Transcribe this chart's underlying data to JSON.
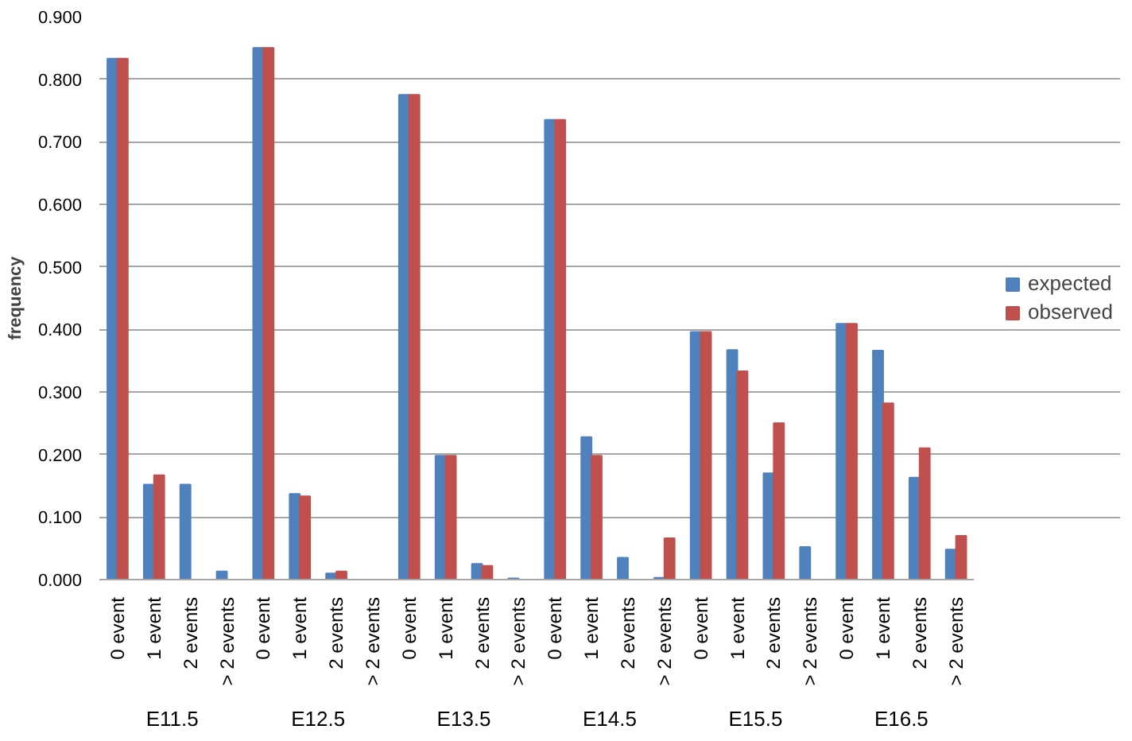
{
  "chart_data": {
    "type": "bar",
    "ylabel": "frequency",
    "categories": [
      "0 event",
      "1 event",
      "2 events",
      "> 2 events",
      "0 event",
      "1 event",
      "2 events",
      "> 2 events",
      "0 event",
      "1 event",
      "2 events",
      "> 2 events",
      "0 event",
      "1 event",
      "2 events",
      "> 2 events",
      "0 event",
      "1 event",
      "2 events",
      "> 2 events",
      "0 event",
      "1 event",
      "2 events",
      "> 2 events"
    ],
    "annotations": [
      "E11.5",
      "E12.5",
      "E13.5",
      "E14.5",
      "E15.5",
      "E16.5"
    ],
    "series": [
      {
        "name": "expected",
        "color": "#4f81bd",
        "values": [
          0.833,
          0.152,
          0.152,
          0.013,
          0.85,
          0.137,
          0.01,
          0,
          0.775,
          0.198,
          0.025,
          0.002,
          0.735,
          0.228,
          0.035,
          0.003,
          0.396,
          0.367,
          0.17,
          0.052,
          0.409,
          0.366,
          0.163,
          0.048
        ]
      },
      {
        "name": "observed",
        "color": "#c0504d",
        "values": [
          0.833,
          0.167,
          0,
          0,
          0.85,
          0.133,
          0.013,
          0,
          0.775,
          0.198,
          0.022,
          0,
          0.735,
          0.198,
          0,
          0.066,
          0.396,
          0.333,
          0.25,
          0,
          0.409,
          0.282,
          0.21,
          0.07
        ]
      }
    ],
    "ylim": [
      0,
      0.9
    ],
    "yticks": [
      {
        "value": 0,
        "label": "0.000"
      },
      {
        "value": 0.1,
        "label": "0.100"
      },
      {
        "value": 0.2,
        "label": "0.200"
      },
      {
        "value": 0.3,
        "label": "0.300"
      },
      {
        "value": 0.4,
        "label": "0.400"
      },
      {
        "value": 0.5,
        "label": "0.500"
      },
      {
        "value": 0.6,
        "label": "0.600"
      },
      {
        "value": 0.7,
        "label": "0.700"
      },
      {
        "value": 0.8,
        "label": "0.800"
      },
      {
        "value": 0.9,
        "label": "0.900"
      }
    ],
    "grid": "y",
    "legend": "right"
  }
}
